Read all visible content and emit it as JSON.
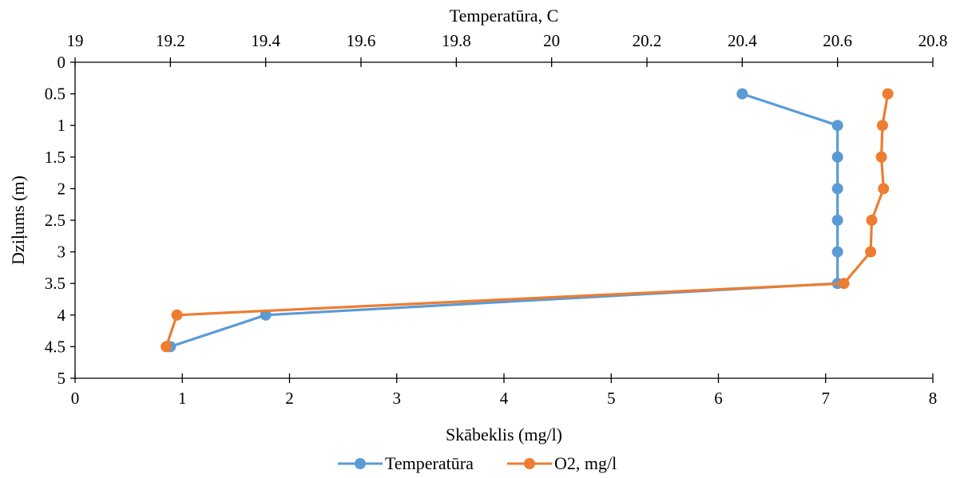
{
  "chart_data": {
    "type": "line",
    "top_axis": {
      "title": "Temperatūra, C",
      "range": [
        19,
        20.8
      ],
      "ticks": [
        "19",
        "19.2",
        "19.4",
        "19.6",
        "19.8",
        "20",
        "20.2",
        "20.4",
        "20.6",
        "20.8"
      ]
    },
    "bottom_axis": {
      "title": "Skābeklis (mg/l)",
      "range": [
        0,
        8
      ],
      "ticks": [
        "0",
        "1",
        "2",
        "3",
        "4",
        "5",
        "6",
        "7",
        "8"
      ]
    },
    "y_axis": {
      "title": "Dziļums (m)",
      "range": [
        0,
        5
      ],
      "reversed": true,
      "ticks": [
        "0",
        "0.5",
        "1",
        "1.5",
        "2",
        "2.5",
        "3",
        "3.5",
        "4",
        "4.5",
        "5"
      ]
    },
    "grid": false,
    "legend_position": "bottom",
    "series": [
      {
        "name": "Temperatūra",
        "axis": "top",
        "color": "#5B9BD5",
        "points": [
          {
            "value": 20.4,
            "depth": 0.5
          },
          {
            "value": 20.6,
            "depth": 1
          },
          {
            "value": 20.6,
            "depth": 1.5
          },
          {
            "value": 20.6,
            "depth": 2
          },
          {
            "value": 20.6,
            "depth": 2.5
          },
          {
            "value": 20.6,
            "depth": 3
          },
          {
            "value": 20.6,
            "depth": 3.5
          },
          {
            "value": 19.4,
            "depth": 4
          },
          {
            "value": 19.2,
            "depth": 4.5
          }
        ]
      },
      {
        "name": "O2, mg/l",
        "axis": "bottom",
        "color": "#ED7D31",
        "points": [
          {
            "value": 7.58,
            "depth": 0.5
          },
          {
            "value": 7.53,
            "depth": 1
          },
          {
            "value": 7.52,
            "depth": 1.5
          },
          {
            "value": 7.54,
            "depth": 2
          },
          {
            "value": 7.43,
            "depth": 2.5
          },
          {
            "value": 7.42,
            "depth": 3
          },
          {
            "value": 7.17,
            "depth": 3.5
          },
          {
            "value": 0.95,
            "depth": 4
          },
          {
            "value": 0.85,
            "depth": 4.5
          }
        ]
      }
    ]
  }
}
